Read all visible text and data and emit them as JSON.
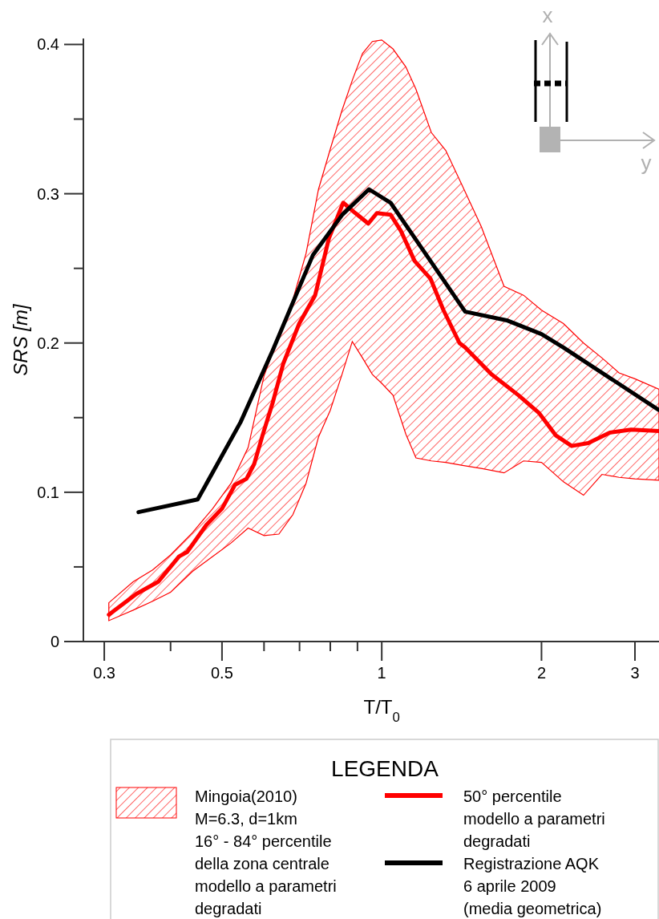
{
  "chart_data": {
    "type": "line",
    "xlabel": "T/T$_{0}$",
    "ylabel": "SRS [m]",
    "legend_title": "LEGENDA",
    "legend": "bottom",
    "log": "x",
    "grid": false,
    "marker": "none",
    "line_style": "solid",
    "xlim": [
      0.274,
      3.33
    ],
    "xticks": [
      0.3,
      {
        "value": 0.4,
        "label": null
      },
      0.5,
      {
        "value": 0.6,
        "label": null
      },
      {
        "value": 0.7,
        "label": null
      },
      {
        "value": 0.8,
        "label": null
      },
      {
        "value": 0.9,
        "label": null
      },
      1,
      2,
      3
    ],
    "ylim": [
      0,
      0.404
    ],
    "yticks": [
      0,
      {
        "value": 0.05,
        "label": null
      },
      0.1,
      {
        "value": 0.15,
        "label": null
      },
      0.2,
      {
        "value": 0.25,
        "label": null
      },
      0.3,
      {
        "value": 0.35,
        "label": null
      },
      0.4
    ],
    "annotations": [
      "x",
      "y"
    ],
    "series": [
      {
        "type": "area",
        "name": "Mingoia(2010)\nM=6.3, d=1km\n16° - 84° percentile\ndella zona centrale\nmodello a parametri\ndegradati",
        "color": "#ff0000",
        "x": [
          0.306,
          0.34,
          0.37,
          0.4,
          0.44,
          0.48,
          0.52,
          0.56,
          0.6,
          0.64,
          0.68,
          0.72,
          0.76,
          0.8,
          0.84,
          0.88,
          0.92,
          0.96,
          1.0,
          1.05,
          1.11,
          1.16,
          1.24,
          1.32,
          1.42,
          1.54,
          1.7,
          1.85,
          2.0,
          2.2,
          2.4,
          2.6,
          2.8,
          3.0,
          3.33
        ],
        "values": [
          null,
          null,
          null,
          null,
          null,
          null,
          null,
          null,
          null,
          null,
          null,
          null,
          null,
          null,
          null,
          null,
          null,
          null,
          null,
          null,
          null,
          null,
          null,
          null,
          null,
          null,
          null,
          null,
          null,
          null,
          null,
          null,
          null,
          null,
          null
        ],
        "upper": [
          0.026,
          0.04,
          0.048,
          0.058,
          0.073,
          0.089,
          0.106,
          0.13,
          0.178,
          0.205,
          0.229,
          0.26,
          0.303,
          0.33,
          0.355,
          0.376,
          0.394,
          0.402,
          0.403,
          0.397,
          0.385,
          0.37,
          0.341,
          0.329,
          0.305,
          0.278,
          0.238,
          0.232,
          0.222,
          0.213,
          0.2,
          0.19,
          0.18,
          0.176,
          0.169
        ],
        "lower": [
          0.014,
          0.021,
          0.027,
          0.033,
          0.047,
          0.057,
          0.066,
          0.076,
          0.071,
          0.072,
          0.085,
          0.106,
          0.137,
          0.155,
          0.178,
          0.201,
          0.19,
          0.179,
          0.173,
          0.165,
          0.139,
          0.123,
          0.121,
          0.12,
          0.118,
          0.116,
          0.113,
          0.121,
          0.12,
          0.107,
          0.098,
          0.112,
          0.11,
          0.109,
          0.108
        ]
      },
      {
        "name": "50° percentile\nmodello a parametri\ndegradati",
        "color": "#ff0000",
        "x": [
          0.306,
          0.345,
          0.379,
          0.415,
          0.43,
          0.467,
          0.5,
          0.529,
          0.556,
          0.575,
          0.596,
          0.623,
          0.652,
          0.699,
          0.749,
          0.795,
          0.846,
          0.892,
          0.943,
          0.979,
          1.039,
          1.087,
          1.153,
          1.236,
          1.307,
          1.401,
          1.436,
          1.61,
          1.81,
          1.98,
          2.13,
          2.28,
          2.45,
          2.69,
          2.95,
          3.33
        ],
        "values": [
          0.018,
          0.032,
          0.04,
          0.057,
          0.06,
          0.078,
          0.089,
          0.105,
          0.109,
          0.119,
          0.138,
          0.16,
          0.186,
          0.213,
          0.232,
          0.27,
          0.294,
          0.287,
          0.28,
          0.287,
          0.286,
          0.275,
          0.255,
          0.243,
          0.222,
          0.2,
          0.197,
          0.179,
          0.165,
          0.153,
          0.138,
          0.131,
          0.133,
          0.14,
          0.142,
          0.141
        ]
      },
      {
        "name": "Registrazione AQK\n6 aprile 2009\n(media geometrica)",
        "color": "#000000",
        "x": [
          0.348,
          0.45,
          0.542,
          0.623,
          0.742,
          0.843,
          0.946,
          1.039,
          1.436,
          1.727,
          2.0,
          2.2,
          3.33
        ],
        "values": [
          0.0867,
          0.0952,
          0.147,
          0.195,
          0.259,
          0.286,
          0.303,
          0.294,
          0.221,
          0.215,
          0.206,
          0.197,
          0.155
        ]
      }
    ]
  }
}
